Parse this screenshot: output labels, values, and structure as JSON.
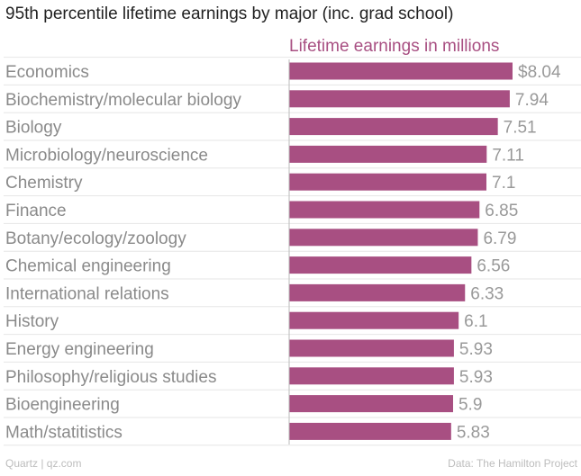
{
  "title": "95th percentile lifetime earnings by major (inc. grad school)",
  "footer": {
    "source_left": "Quartz | qz.com",
    "source_right": "Data: The Hamilton Project"
  },
  "colors": {
    "bar": "#a84f82",
    "series_label": "#a84f82",
    "category_text": "#8a8a8a",
    "value_text": "#999999",
    "gridline": "#e6e6e6",
    "axis": "#bbbbbb"
  },
  "chart_data": {
    "type": "bar",
    "orientation": "horizontal",
    "series_label": "Lifetime earnings in millions",
    "categories": [
      "Economics",
      "Biochemistry/molecular biology",
      "Biology",
      "Microbiology/neuroscience",
      "Chemistry",
      "Finance",
      "Botany/ecology/zoology",
      "Chemical engineering",
      "International relations",
      "History",
      "Energy engineering",
      "Philosophy/religious studies",
      "Bioengineering",
      "Math/statitistics"
    ],
    "values": [
      8.04,
      7.94,
      7.51,
      7.11,
      7.1,
      6.85,
      6.79,
      6.56,
      6.33,
      6.1,
      5.93,
      5.93,
      5.9,
      5.83
    ],
    "value_labels": [
      "$8.04",
      "7.94",
      "7.51",
      "7.11",
      "7.1",
      "6.85",
      "6.79",
      "6.56",
      "6.33",
      "6.1",
      "5.93",
      "5.93",
      "5.9",
      "5.83"
    ],
    "xlim": [
      0,
      8.04
    ],
    "grid": true
  }
}
